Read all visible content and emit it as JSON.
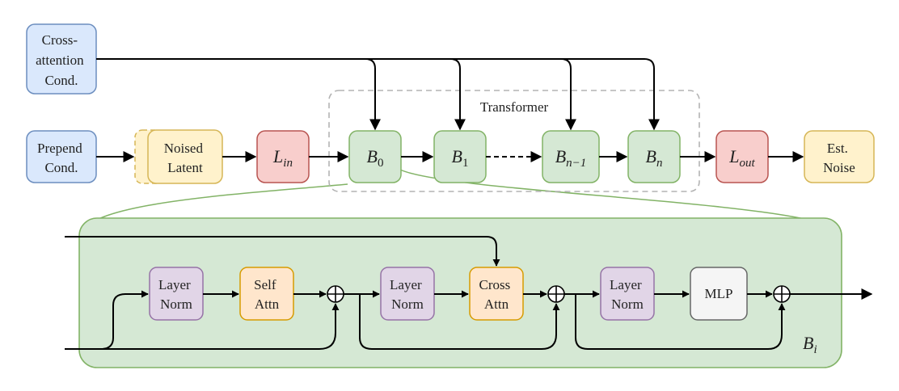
{
  "colors": {
    "blue_fill": "#dae8fc",
    "blue_stroke": "#6c8ebf",
    "yellow_fill": "#fff2cc",
    "yellow_stroke": "#d6b656",
    "red_fill": "#f8cecc",
    "red_stroke": "#b85450",
    "green_fill": "#d5e8d4",
    "green_stroke": "#82b366",
    "purple_fill": "#e1d5e7",
    "purple_stroke": "#9673a6",
    "orange_fill": "#ffe6cc",
    "orange_stroke": "#d79b00",
    "gray_fill": "#f5f5f5",
    "gray_stroke": "#666666",
    "dashed_gray": "#b3b3b3"
  },
  "top": {
    "cross_cond": [
      "Cross-",
      "attention",
      "Cond."
    ],
    "prepend_cond": [
      "Prepend",
      "Cond."
    ],
    "noised_latent": [
      "Noised",
      "Latent"
    ],
    "l_in": {
      "base": "L",
      "sub": "in"
    },
    "b0": {
      "base": "B",
      "sub": "0"
    },
    "b1": {
      "base": "B",
      "sub": "1"
    },
    "bn1": {
      "base": "B",
      "sub": "n−1"
    },
    "bn": {
      "base": "B",
      "sub": "n"
    },
    "l_out": {
      "base": "L",
      "sub": "out"
    },
    "est_noise": [
      "Est.",
      "Noise"
    ],
    "transformer_label": "Transformer"
  },
  "block": {
    "ln1": [
      "Layer",
      "Norm"
    ],
    "self_attn": [
      "Self",
      "Attn"
    ],
    "ln2": [
      "Layer",
      "Norm"
    ],
    "cross_attn": [
      "Cross",
      "Attn"
    ],
    "ln3": [
      "Layer",
      "Norm"
    ],
    "mlp": "MLP",
    "bi": {
      "base": "B",
      "sub": "i"
    }
  }
}
